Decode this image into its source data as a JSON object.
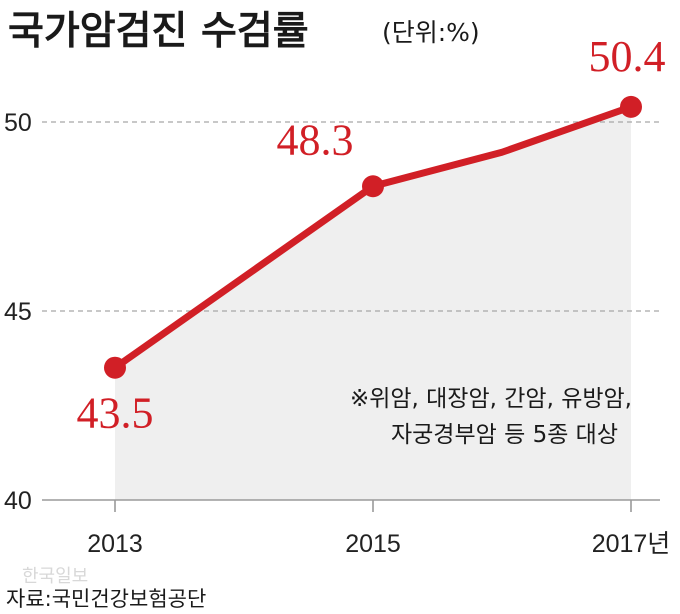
{
  "title": "국가암검진 수검률",
  "unit_note": "(단위:%)",
  "note_lines": [
    "※위암, 대장암, 간암, 유방암,",
    "자궁경부암 등 5종 대상"
  ],
  "source": "자료:국민건강보험공단",
  "watermark": "한국일보",
  "colors": {
    "line": "#d11f26",
    "area": "#efefef",
    "axis": "#9a9a9a",
    "grid": "#a8a8a8"
  },
  "chart_data": {
    "type": "line",
    "x": [
      2013,
      2015,
      2016,
      2017
    ],
    "x_tick_labels": [
      "2013",
      "2015",
      "2017년"
    ],
    "x_tick_values": [
      2013,
      2015,
      2017
    ],
    "y_tick_labels": [
      "40",
      "45",
      "50"
    ],
    "y_tick_values": [
      40,
      45,
      50
    ],
    "ylim": [
      40,
      52
    ],
    "grid": "dashed horizontal at 45 and 50",
    "series": [
      {
        "values": [
          43.5,
          48.3,
          49.2,
          50.4
        ],
        "markers": [
          true,
          true,
          false,
          true
        ],
        "data_labels": [
          "43.5",
          "48.3",
          null,
          "50.4"
        ]
      }
    ]
  }
}
